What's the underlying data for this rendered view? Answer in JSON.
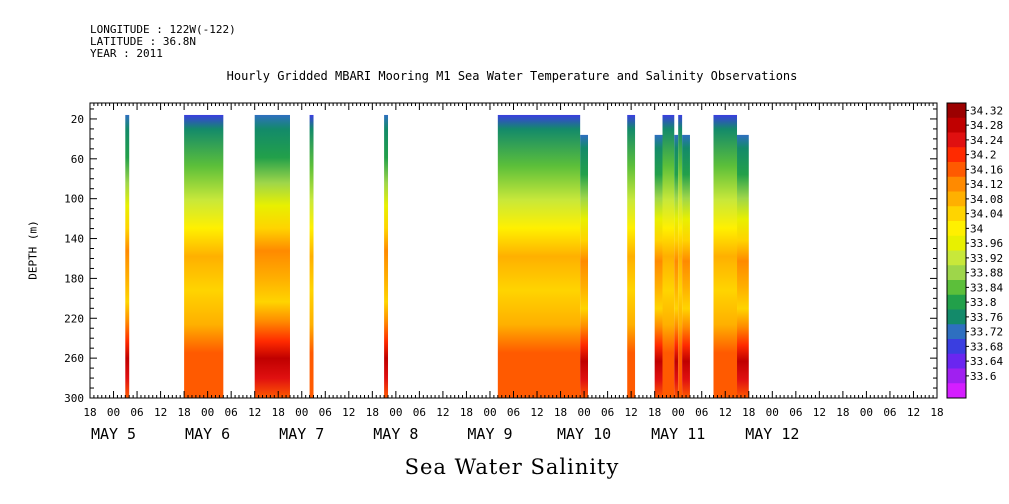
{
  "meta": {
    "longitude": "LONGITUDE : 122W(-122)",
    "latitude": "LATITUDE : 36.8N",
    "year": "YEAR : 2011"
  },
  "chart_data": {
    "type": "heatmap",
    "title": "Hourly Gridded MBARI Mooring M1 Sea Water Temperature and Salinity Observations",
    "xlabel": "Sea Water Salinity",
    "ylabel": "DEPTH (m)",
    "ylim": [
      300,
      4
    ],
    "y_ticks": [
      20,
      60,
      100,
      140,
      180,
      220,
      260,
      300
    ],
    "x_hour_ticks": [
      "18",
      "00",
      "06",
      "12",
      "18",
      "00",
      "06",
      "12",
      "18",
      "00",
      "06",
      "12",
      "18",
      "00",
      "06",
      "12",
      "18",
      "00",
      "06",
      "12",
      "18",
      "00",
      "06",
      "12",
      "18",
      "00",
      "06",
      "12",
      "18",
      "00",
      "06",
      "12",
      "18",
      "00",
      "06",
      "12",
      "18"
    ],
    "x_day_labels": [
      "MAY  5",
      "MAY  6",
      "MAY  7",
      "MAY  8",
      "MAY  9",
      "MAY 10",
      "MAY 11",
      "MAY 12"
    ],
    "colorbar": {
      "levels": [
        34.32,
        34.28,
        34.24,
        34.2,
        34.16,
        34.12,
        34.08,
        34.04,
        34,
        33.96,
        33.92,
        33.88,
        33.84,
        33.8,
        33.76,
        33.72,
        33.68,
        33.64,
        33.6
      ],
      "colors": [
        "#9b0000",
        "#c00000",
        "#e01010",
        "#ff2a00",
        "#ff5a00",
        "#ff8a00",
        "#ffb000",
        "#ffd400",
        "#fff000",
        "#e8f000",
        "#c8e83a",
        "#9ed64a",
        "#5cbf3a",
        "#22a04a",
        "#138a6a",
        "#2e6fc0",
        "#3a3ee0",
        "#6a26f0",
        "#a020f0",
        "#d41eff"
      ]
    },
    "observation_blocks": [
      {
        "start": "May 5 03:00",
        "end": "May 5 04:00",
        "top_depth": 20
      },
      {
        "start": "May 5 18:00",
        "end": "May 6 04:00",
        "top_depth": 20
      },
      {
        "start": "May 6 12:00",
        "end": "May 6 21:00",
        "top_depth": 20
      },
      {
        "start": "May 7 02:00",
        "end": "May 7 03:00",
        "top_depth": 20
      },
      {
        "start": "May 7 21:00",
        "end": "May 7 22:00",
        "top_depth": 20
      },
      {
        "start": "May 9 02:00",
        "end": "May 9 23:00",
        "top_depth": 20
      },
      {
        "start": "May 9 23:00",
        "end": "May 10 01:00",
        "top_depth": 40
      },
      {
        "start": "May 10 11:00",
        "end": "May 10 13:00",
        "top_depth": 20
      },
      {
        "start": "May 10 18:00",
        "end": "May 10 20:00",
        "top_depth": 40
      },
      {
        "start": "May 10 20:00",
        "end": "May 10 23:00",
        "top_depth": 20
      },
      {
        "start": "May 10 23:00",
        "end": "May 11 00:00",
        "top_depth": 40
      },
      {
        "start": "May 11 00:00",
        "end": "May 11 01:00",
        "top_depth": 20
      },
      {
        "start": "May 11 01:00",
        "end": "May 11 03:00",
        "top_depth": 40
      },
      {
        "start": "May 11 09:00",
        "end": "May 11 15:00",
        "top_depth": 20
      },
      {
        "start": "May 11 15:00",
        "end": "May 11 18:00",
        "top_depth": 40
      }
    ]
  }
}
